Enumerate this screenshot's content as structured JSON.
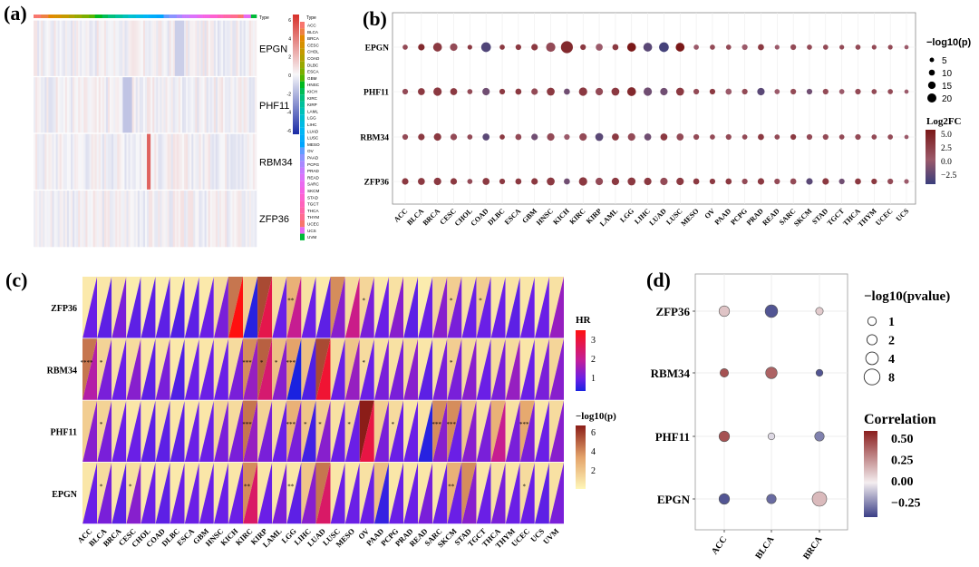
{
  "panel_labels": {
    "a": "(a)",
    "b": "(b)",
    "c": "(c)",
    "d": "(d)"
  },
  "cancers": [
    "ACC",
    "BLCA",
    "BRCA",
    "CESC",
    "CHOL",
    "COAD",
    "DLBC",
    "ESCA",
    "GBM",
    "HNSC",
    "KICH",
    "KIRC",
    "KIRP",
    "LAML",
    "LGG",
    "LIHC",
    "LUAD",
    "LUSC",
    "MESO",
    "OV",
    "PAAD",
    "PCPG",
    "PRAD",
    "READ",
    "SARC",
    "SKCM",
    "STAD",
    "TGCT",
    "THCA",
    "THYM",
    "UCEC",
    "UCS",
    "UVM"
  ],
  "type_colors": [
    "#F8766D",
    "#EE8043",
    "#E38900",
    "#D69100",
    "#C49A00",
    "#B0A100",
    "#99A800",
    "#7CAE00",
    "#53B400",
    "#00B81F",
    "#00BC56",
    "#00BF7D",
    "#00C19C",
    "#00C1B8",
    "#00BFD1",
    "#00BBE4",
    "#00B6F4",
    "#00ADFA",
    "#00A5FF",
    "#619CFF",
    "#8B93FF",
    "#A989FF",
    "#C77CFF",
    "#DB72FB",
    "#EA6AF0",
    "#F564E3",
    "#FD61D1",
    "#FF62BC",
    "#FF66A8",
    "#FF6C90",
    "#F8766D",
    "#E76BF3",
    "#00BA38"
  ],
  "chart_data": [
    {
      "panel": "a",
      "type": "heatmap",
      "title": "",
      "rows": [
        "EPGN",
        "PHF11",
        "RBM34",
        "ZFP36"
      ],
      "annotation_label": "Type",
      "legend_title": "Type",
      "legend_entries": [
        "ACC",
        "BLCA",
        "BRCA",
        "CESC",
        "CHOL",
        "COAD",
        "DLBC",
        "ESCA",
        "GBM",
        "HNSC",
        "KICH",
        "KIRC",
        "KIRP",
        "LAML",
        "LGG",
        "LIHC",
        "LUAD",
        "LUSC",
        "MESO",
        "OV",
        "PAAD",
        "PCPG",
        "PRAD",
        "READ",
        "SARC",
        "SKCM",
        "STAD",
        "TGCT",
        "THCA",
        "THYM",
        "UCEC",
        "UCS",
        "UVM"
      ],
      "color_scale_ticks": [
        "6",
        "4",
        "2",
        "0",
        "-2",
        "-4",
        "-6"
      ],
      "color_range": [
        -6,
        6
      ]
    },
    {
      "panel": "b",
      "type": "scatter",
      "title": "",
      "genes": [
        "EPGN",
        "PHF11",
        "RBM34",
        "ZFP36"
      ],
      "cancers": [
        "ACC",
        "BLCA",
        "BRCA",
        "CESC",
        "CHOL",
        "COAD",
        "DLBC",
        "ESCA",
        "GBM",
        "HNSC",
        "KICH",
        "KIRC",
        "KIRP",
        "LAML",
        "LGG",
        "LIHC",
        "LUAD",
        "LUSC",
        "MESO",
        "OV",
        "PAAD",
        "PCPG",
        "PRAD",
        "READ",
        "SARC",
        "SKCM",
        "STAD",
        "TGCT",
        "THCA",
        "THYM",
        "UCEC",
        "UCS"
      ],
      "size_legend_title": "−log10(p)",
      "size_legend": [
        5,
        10,
        15,
        20
      ],
      "color_legend_title": "Log2FC",
      "color_legend_ticks": [
        "5.0",
        "2.5",
        "0.0",
        "−2.5"
      ],
      "color_range": [
        -3.5,
        5
      ],
      "neglog10p": [
        [
          5,
          8,
          13,
          10,
          4,
          15,
          5,
          6,
          8,
          14,
          20,
          6,
          9,
          7,
          13,
          13,
          15,
          13,
          5,
          5,
          5,
          6,
          7,
          4,
          6,
          5,
          5,
          4,
          5,
          4,
          4,
          3
        ],
        [
          6,
          9,
          12,
          9,
          5,
          10,
          6,
          7,
          8,
          11,
          7,
          12,
          10,
          11,
          13,
          12,
          10,
          11,
          6,
          6,
          7,
          6,
          10,
          5,
          6,
          6,
          6,
          5,
          6,
          5,
          5,
          3
        ],
        [
          6,
          8,
          10,
          8,
          5,
          9,
          5,
          7,
          8,
          10,
          6,
          10,
          11,
          9,
          10,
          9,
          9,
          9,
          6,
          5,
          6,
          5,
          7,
          5,
          6,
          6,
          6,
          5,
          6,
          5,
          5,
          3
        ],
        [
          8,
          9,
          10,
          8,
          5,
          9,
          6,
          7,
          8,
          11,
          7,
          12,
          10,
          10,
          11,
          10,
          10,
          10,
          7,
          6,
          7,
          6,
          8,
          6,
          7,
          8,
          8,
          6,
          7,
          6,
          6,
          4
        ]
      ],
      "log2fc": [
        [
          2,
          4,
          3,
          2,
          3,
          -2.5,
          3,
          3,
          3,
          2,
          4,
          3,
          1,
          3,
          5,
          -2,
          -3,
          5,
          1,
          2,
          2,
          1,
          3,
          1,
          2,
          2,
          2,
          2,
          2,
          2,
          2,
          1
        ],
        [
          2,
          3,
          3,
          3,
          2,
          -1,
          3,
          3,
          2,
          3,
          -1,
          3,
          2,
          3,
          4,
          -1,
          -1,
          3,
          2,
          3,
          1,
          2,
          -2,
          1,
          2,
          -1,
          2,
          1,
          2,
          2,
          2,
          1
        ],
        [
          2,
          3,
          3,
          2,
          2,
          -2,
          3,
          2,
          -1,
          2,
          1,
          2,
          -2,
          3,
          2,
          -1,
          3,
          2,
          2,
          2,
          2,
          2,
          3,
          2,
          3,
          2,
          2,
          2,
          2,
          2,
          2,
          1
        ],
        [
          3,
          3,
          3,
          3,
          2,
          3,
          3,
          3,
          3,
          3,
          -1,
          3,
          2,
          3,
          3,
          3,
          2,
          3,
          3,
          3,
          3,
          2,
          3,
          2,
          2,
          -2,
          3,
          -1,
          3,
          3,
          2,
          1
        ]
      ]
    },
    {
      "panel": "c",
      "type": "heatmap",
      "title": "",
      "rows": [
        "ZFP36",
        "RBM34",
        "PHF11",
        "EPGN"
      ],
      "cancers": [
        "ACC",
        "BLCA",
        "BRCA",
        "CESC",
        "CHOL",
        "COAD",
        "DLBC",
        "ESCA",
        "GBM",
        "HNSC",
        "KICH",
        "KIRC",
        "KIRP",
        "LAML",
        "LGG",
        "LIHC",
        "LUAD",
        "LUSC",
        "MESO",
        "OV",
        "PAAD",
        "PCPG",
        "PRAD",
        "READ",
        "SARC",
        "SKCM",
        "STAD",
        "TGCT",
        "THCA",
        "THYM",
        "UCEC",
        "UCS",
        "UVM"
      ],
      "hr_legend_title": "HR",
      "hr_ticks": [
        "3",
        "2",
        "1"
      ],
      "p_legend_title": "−log10(p)",
      "p_ticks": [
        "6",
        "4",
        "2"
      ],
      "hr": [
        [
          1.0,
          0.9,
          1.1,
          0.9,
          0.9,
          0.9,
          0.8,
          0.9,
          1.0,
          1.1,
          3.2,
          0.5,
          2.5,
          1.0,
          1.7,
          1.0,
          0.9,
          1.2,
          1.8,
          1.1,
          1.0,
          1.2,
          0.9,
          1.0,
          1.2,
          1.1,
          1.0,
          1.0,
          1.0,
          0.9,
          1.0,
          1.0,
          1.3
        ],
        [
          1.5,
          1.1,
          1.0,
          1.2,
          0.9,
          1.1,
          0.8,
          1.0,
          1.0,
          1.0,
          1.1,
          1.3,
          2.1,
          1.2,
          0.4,
          0.8,
          2.8,
          1.0,
          1.3,
          1.0,
          1.1,
          1.1,
          1.2,
          0.9,
          1.1,
          1.1,
          1.2,
          1.0,
          1.1,
          1.3,
          1.0,
          1.1,
          1.2
        ],
        [
          1.2,
          1.1,
          1.0,
          1.0,
          0.9,
          0.9,
          0.9,
          1.0,
          1.0,
          1.1,
          1.1,
          1.3,
          1.1,
          1.0,
          1.1,
          0.7,
          1.2,
          1.0,
          1.0,
          2.6,
          1.1,
          1.0,
          1.0,
          0.5,
          1.2,
          1.0,
          1.2,
          1.1,
          1.7,
          1.1,
          1.1,
          1.0,
          1.2
        ],
        [
          1.0,
          1.1,
          0.9,
          1.2,
          1.0,
          0.9,
          1.0,
          1.0,
          1.0,
          1.0,
          1.0,
          2.2,
          1.0,
          1.1,
          0.9,
          1.2,
          2.2,
          1.0,
          1.0,
          1.0,
          0.6,
          1.0,
          1.0,
          1.1,
          1.0,
          1.0,
          1.2,
          1.0,
          1.1,
          1.0,
          1.0,
          0.9,
          1.1
        ]
      ],
      "neglog10p": [
        [
          0.5,
          0.6,
          0.8,
          0.4,
          0.4,
          0.4,
          0.4,
          0.5,
          0.5,
          1.0,
          4.0,
          1.5,
          5.0,
          1.0,
          2.5,
          0.8,
          0.5,
          3.5,
          1.0,
          1.2,
          0.5,
          0.8,
          0.6,
          0.4,
          1.2,
          1.5,
          0.8,
          1.5,
          0.6,
          0.7,
          0.6,
          0.5,
          0.8
        ],
        [
          4.0,
          1.3,
          0.8,
          1.0,
          0.6,
          0.8,
          0.5,
          0.6,
          0.6,
          0.8,
          1.0,
          3.5,
          4.5,
          2.0,
          3.0,
          2.0,
          5.0,
          1.0,
          1.8,
          1.0,
          0.8,
          0.8,
          1.0,
          0.6,
          0.8,
          1.5,
          1.0,
          0.8,
          1.0,
          1.0,
          0.6,
          0.8,
          1.2
        ],
        [
          1.5,
          1.3,
          0.8,
          0.6,
          0.6,
          0.8,
          0.6,
          0.6,
          0.6,
          1.2,
          1.0,
          4.0,
          1.3,
          1.0,
          2.5,
          1.8,
          1.5,
          0.8,
          1.2,
          6.0,
          1.5,
          1.0,
          0.6,
          0.7,
          3.5,
          3.5,
          1.8,
          0.8,
          2.5,
          0.8,
          2.8,
          0.6,
          1.0
        ],
        [
          0.6,
          1.0,
          0.6,
          0.9,
          0.5,
          0.6,
          0.5,
          0.6,
          0.6,
          0.6,
          0.6,
          3.5,
          0.6,
          0.6,
          0.6,
          1.8,
          4.0,
          0.6,
          0.6,
          0.8,
          2.0,
          0.6,
          0.6,
          0.6,
          0.6,
          2.5,
          3.5,
          0.6,
          0.8,
          0.6,
          1.0,
          0.6,
          0.8
        ]
      ],
      "stars": [
        [
          "",
          "",
          "",
          "",
          "",
          "",
          "",
          "",
          "",
          "",
          "",
          "",
          "",
          "",
          "**",
          "",
          "",
          "",
          "",
          "*",
          "",
          "",
          "",
          "",
          "",
          "*",
          "",
          "*",
          "",
          "",
          "",
          "",
          ""
        ],
        [
          "****",
          "*",
          "",
          "",
          "",
          "",
          "",
          "",
          "",
          "",
          "",
          "***",
          "*",
          "*",
          "***",
          "",
          "",
          "",
          "",
          "*",
          "",
          "",
          "",
          "",
          "",
          "*",
          "",
          "",
          "",
          "",
          "",
          "",
          ""
        ],
        [
          "",
          "*",
          "",
          "",
          "",
          "",
          "",
          "",
          "",
          "",
          "",
          "***",
          "",
          "",
          "***",
          "*",
          "*",
          "",
          "*",
          "",
          "",
          "*",
          "",
          "",
          "***",
          "***",
          "",
          "",
          "",
          "",
          "***",
          "",
          ""
        ],
        [
          "",
          "*",
          "",
          "*",
          "",
          "",
          "",
          "",
          "",
          "",
          "",
          "**",
          "",
          "",
          "**",
          "",
          "",
          "",
          "",
          "",
          "",
          "",
          "",
          "",
          "",
          "**",
          "",
          "",
          "",
          "",
          "*",
          "",
          ""
        ]
      ]
    },
    {
      "panel": "d",
      "type": "scatter",
      "title": "",
      "genes": [
        "ZFP36",
        "RBM34",
        "PHF11",
        "EPGN"
      ],
      "cancers": [
        "ACC",
        "BLCA",
        "BRCA"
      ],
      "size_legend_title": "−log10(pvalue)",
      "size_legend": [
        1,
        2,
        4,
        8
      ],
      "color_legend_title": "Correlation",
      "color_legend_ticks": [
        "0.50",
        "0.25",
        "0.00",
        "−0.25"
      ],
      "color_range": [
        -0.4,
        0.6
      ],
      "neglog10p": [
        [
          3,
          4,
          1.5
        ],
        [
          2,
          3.5,
          1.2
        ],
        [
          3,
          1.2,
          2.5
        ],
        [
          3,
          2.5,
          5
        ]
      ],
      "correlation": [
        [
          0.12,
          -0.35,
          0.1
        ],
        [
          0.45,
          0.4,
          -0.35
        ],
        [
          0.45,
          -0.05,
          -0.25
        ],
        [
          -0.35,
          -0.3,
          0.15
        ]
      ]
    }
  ]
}
